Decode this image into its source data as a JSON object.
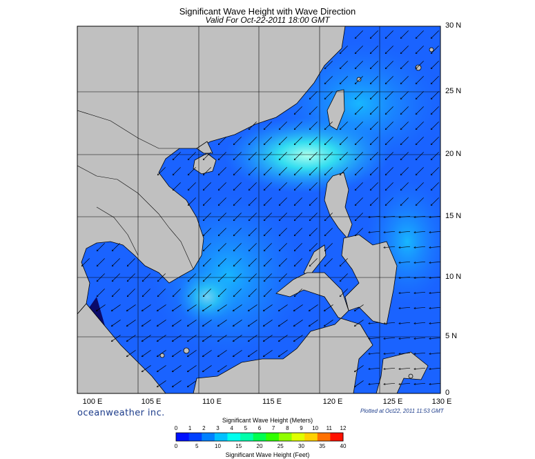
{
  "title": "Significant Wave Height with Wave Direction",
  "subtitle": "Valid For Oct-22-2011 18:00 GMT",
  "lat_labels": [
    "30 N",
    "25 N",
    "20 N",
    "15 N",
    "10 N",
    "5 N",
    "0"
  ],
  "lon_labels": [
    "100 E",
    "105 E",
    "110 E",
    "115 E",
    "120 E",
    "125 E",
    "130 E"
  ],
  "brand": "oceanweather inc.",
  "plotted": "Plotted at Oct22, 2011 11:53 GMT",
  "scale": {
    "title_meters": "Significant Wave Height (Meters)",
    "title_feet": "Significant Wave Height (Feet)",
    "meter_ticks": [
      "0",
      "1",
      "2",
      "3",
      "4",
      "5",
      "6",
      "7",
      "8",
      "9",
      "10",
      "11",
      "12"
    ],
    "feet_ticks": [
      "0",
      "5",
      "10",
      "15",
      "20",
      "25",
      "30",
      "35",
      "40"
    ],
    "colors": [
      "#0010ff",
      "#0040ff",
      "#0080ff",
      "#00c0ff",
      "#00ffee",
      "#00ffaa",
      "#00ff50",
      "#30ff00",
      "#90ff00",
      "#e0ff00",
      "#ffd000",
      "#ff7000",
      "#ff1000"
    ]
  },
  "map": {
    "extent": {
      "lon_min": 100,
      "lon_max": 130,
      "lat_min": 0,
      "lat_max": 30
    },
    "land_color": "#c0c0c0",
    "arrow_direction": "predominantly toward southwest from northeast"
  }
}
